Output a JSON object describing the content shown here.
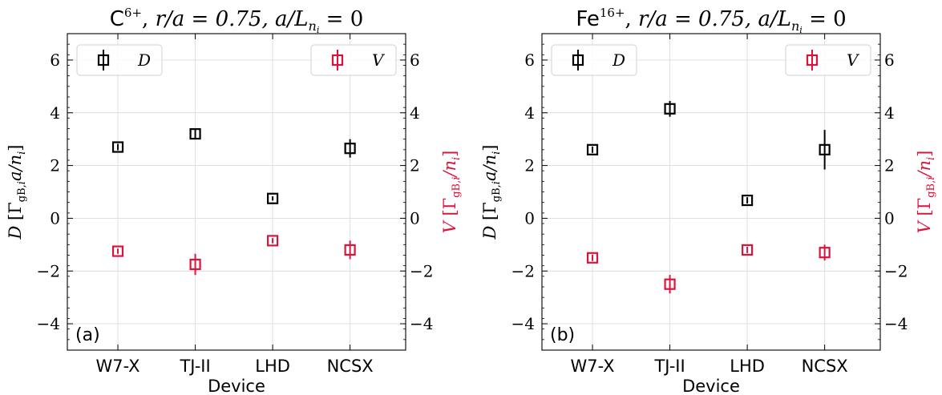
{
  "chart_data": [
    {
      "type": "scatter",
      "panel_label": "(a)",
      "title": {
        "species": "C",
        "charge": "6+",
        "rest": ", r/a = 0.75, a/L",
        "subscript": "n",
        "subsubscript": "i",
        "tail": " = 0"
      },
      "categories": [
        "W7-X",
        "TJ-II",
        "LHD",
        "NCSX"
      ],
      "xlabel": "Device",
      "ylabel_left": "D [Γ_gB,i a/n_i]",
      "ylabel_right": "V [Γ_gB,i/n_i]",
      "ylim": [
        -5,
        7
      ],
      "yticks": [
        -4,
        -2,
        0,
        2,
        4,
        6
      ],
      "yticks_right": [
        -4,
        -2,
        0,
        2,
        4,
        6
      ],
      "grid": true,
      "series": [
        {
          "name": "D",
          "axis": "left",
          "color": "#000000",
          "values": [
            2.7,
            3.2,
            0.75,
            2.65
          ],
          "errors": [
            0.12,
            0.2,
            0.08,
            0.35
          ]
        },
        {
          "name": "V",
          "axis": "right",
          "color": "#dc143c",
          "values": [
            -1.25,
            -1.75,
            -0.85,
            -1.2
          ],
          "errors": [
            0.1,
            0.4,
            0.1,
            0.35
          ]
        }
      ],
      "legend": [
        {
          "name": "D",
          "placement": "upper-left"
        },
        {
          "name": "V",
          "placement": "upper-right"
        }
      ]
    },
    {
      "type": "scatter",
      "panel_label": "(b)",
      "title": {
        "species": "Fe",
        "charge": "16+",
        "rest": ", r/a = 0.75, a/L",
        "subscript": "n",
        "subsubscript": "i",
        "tail": " = 0"
      },
      "categories": [
        "W7-X",
        "TJ-II",
        "LHD",
        "NCSX"
      ],
      "xlabel": "Device",
      "ylabel_left": "D [Γ_gB,i a/n_i]",
      "ylabel_right": "V [Γ_gB,i/n_i]",
      "ylim": [
        -5,
        7
      ],
      "yticks": [
        -4,
        -2,
        0,
        2,
        4,
        6
      ],
      "yticks_right": [
        -4,
        -2,
        0,
        2,
        4,
        6
      ],
      "grid": true,
      "series": [
        {
          "name": "D",
          "axis": "left",
          "color": "#000000",
          "values": [
            2.6,
            4.15,
            0.68,
            2.6
          ],
          "errors": [
            0.12,
            0.3,
            0.12,
            0.75
          ]
        },
        {
          "name": "V",
          "axis": "right",
          "color": "#dc143c",
          "values": [
            -1.5,
            -2.5,
            -1.2,
            -1.3
          ],
          "errors": [
            0.12,
            0.35,
            0.12,
            0.3
          ]
        }
      ],
      "legend": [
        {
          "name": "D",
          "placement": "upper-left"
        },
        {
          "name": "V",
          "placement": "upper-right"
        }
      ]
    }
  ]
}
